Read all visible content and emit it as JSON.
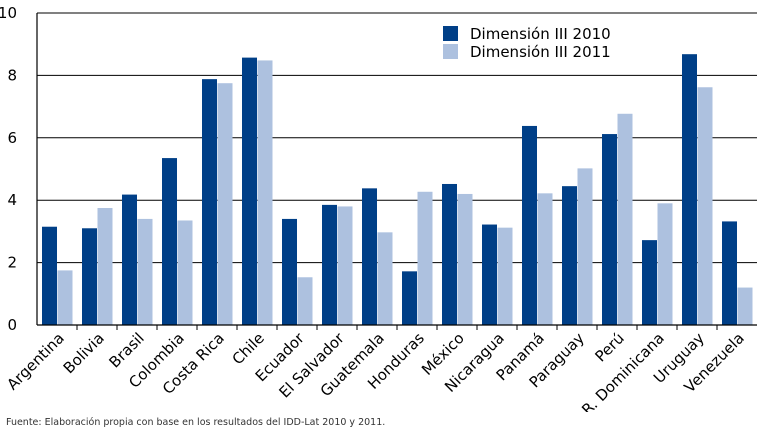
{
  "chart_data": {
    "type": "bar",
    "categories": [
      "Argentina",
      "Bolivia",
      "Brasil",
      "Colombia",
      "Costa Rica",
      "Chile",
      "Ecuador",
      "El Salvador",
      "Guatemala",
      "Honduras",
      "México",
      "Nicaragua",
      "Panamá",
      "Paraguay",
      "Perú",
      "R. Dominicana",
      "Uruguay",
      "Venezuela"
    ],
    "series": [
      {
        "name": "Dimensión III 2010",
        "color": "#003f87",
        "values": [
          3.15,
          3.1,
          4.18,
          5.35,
          7.88,
          8.57,
          3.4,
          3.85,
          4.38,
          1.72,
          4.52,
          3.22,
          6.38,
          4.45,
          6.12,
          2.72,
          8.68,
          3.32
        ]
      },
      {
        "name": "Dimensión III 2011",
        "color": "#adc1df",
        "values": [
          1.75,
          3.75,
          3.4,
          3.35,
          7.75,
          8.48,
          1.53,
          3.8,
          2.97,
          4.27,
          4.2,
          3.12,
          4.22,
          5.02,
          6.77,
          3.9,
          7.62,
          1.2
        ]
      }
    ],
    "ylim": [
      0,
      10
    ],
    "yticks": [
      0,
      2,
      4,
      6,
      8,
      10
    ],
    "grid": true,
    "legend_position": "top-right"
  },
  "source_note": "Fuente: Elaboración propia con base en los resultados del IDD-Lat 2010 y 2011."
}
